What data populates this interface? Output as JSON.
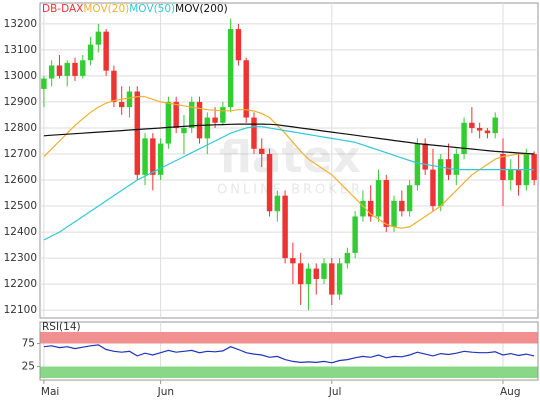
{
  "chart_data": {
    "type": "candlestick",
    "categories": [
      "Mai",
      null,
      null,
      null,
      null,
      null,
      null,
      null,
      null,
      null,
      null,
      null,
      null,
      null,
      null,
      "Jun",
      null,
      null,
      null,
      null,
      null,
      null,
      null,
      null,
      null,
      null,
      null,
      null,
      null,
      null,
      null,
      null,
      null,
      null,
      null,
      null,
      null,
      "Jul",
      null,
      null,
      null,
      null,
      null,
      null,
      null,
      null,
      null,
      null,
      null,
      null,
      null,
      null,
      null,
      null,
      null,
      null,
      null,
      null,
      null,
      "Aug",
      null,
      null,
      null,
      null
    ],
    "ohlc": {
      "name": "DB-DAX",
      "up_color": "#33cc33",
      "down_color": "#ee3333",
      "open": [
        12950,
        12990,
        13040,
        13000,
        13050,
        13000,
        13060,
        13120,
        13170,
        13020,
        12900,
        12880,
        12940,
        12620,
        12760,
        12620,
        12740,
        12900,
        12780,
        12800,
        12900,
        12760,
        12840,
        12820,
        12880,
        13180,
        13060,
        12840,
        12720,
        12700,
        12480,
        12540,
        12300,
        12280,
        12200,
        12260,
        12220,
        12280,
        12160,
        12280,
        12320,
        12460,
        12520,
        12460,
        12600,
        12420,
        12520,
        12480,
        12580,
        12740,
        12640,
        12500,
        12680,
        12620,
        12700,
        12820,
        12800,
        12790,
        12780,
        12700,
        12600,
        12640,
        12580,
        12700
      ],
      "high": [
        13000,
        13060,
        13080,
        13060,
        13070,
        13080,
        13150,
        13200,
        13180,
        13040,
        12960,
        12960,
        12960,
        12780,
        12780,
        12760,
        12920,
        12920,
        12850,
        12920,
        12920,
        12860,
        12880,
        12900,
        13220,
        13200,
        13070,
        12860,
        12760,
        12720,
        12560,
        12560,
        12360,
        12320,
        12280,
        12280,
        12300,
        12300,
        12300,
        12340,
        12480,
        12560,
        12580,
        12640,
        12620,
        12540,
        12560,
        12600,
        12760,
        12760,
        12720,
        12700,
        12740,
        12720,
        12840,
        12880,
        12820,
        12800,
        12860,
        12760,
        12680,
        12700,
        12720,
        12710
      ],
      "low": [
        12880,
        12960,
        12990,
        12960,
        12980,
        12990,
        13040,
        13090,
        13000,
        12880,
        12850,
        12840,
        12600,
        12580,
        12560,
        12600,
        12720,
        12780,
        12700,
        12780,
        12740,
        12700,
        12800,
        12810,
        12860,
        13040,
        12820,
        12700,
        12650,
        12460,
        12440,
        12280,
        12200,
        12120,
        12100,
        12160,
        12200,
        12120,
        12140,
        12260,
        12300,
        12440,
        12440,
        12440,
        12400,
        12400,
        12460,
        12460,
        12560,
        12620,
        12480,
        12480,
        12600,
        12580,
        12680,
        12780,
        12760,
        12760,
        12760,
        12500,
        12560,
        12540,
        12560,
        12580
      ],
      "close": [
        12990,
        13040,
        13000,
        13050,
        13000,
        13060,
        13120,
        13170,
        13020,
        12900,
        12880,
        12940,
        12620,
        12760,
        12620,
        12740,
        12900,
        12800,
        12800,
        12900,
        12760,
        12840,
        12820,
        12880,
        13180,
        13060,
        12840,
        12720,
        12700,
        12480,
        12540,
        12300,
        12280,
        12200,
        12260,
        12220,
        12280,
        12160,
        12280,
        12320,
        12460,
        12520,
        12460,
        12600,
        12420,
        12520,
        12480,
        12580,
        12740,
        12640,
        12500,
        12680,
        12620,
        12700,
        12820,
        12800,
        12790,
        12780,
        12840,
        12600,
        12640,
        12580,
        12700,
        12600
      ]
    },
    "series": [
      {
        "name": "MOV(20)",
        "color": "#f0b030",
        "values": [
          12690,
          12720,
          12750,
          12780,
          12810,
          12835,
          12860,
          12880,
          12895,
          12905,
          12910,
          12915,
          12920,
          12920,
          12910,
          12900,
          12895,
          12890,
          12885,
          12880,
          12875,
          12870,
          12868,
          12866,
          12866,
          12870,
          12870,
          12865,
          12855,
          12840,
          12810,
          12780,
          12745,
          12710,
          12680,
          12660,
          12640,
          12620,
          12590,
          12560,
          12530,
          12500,
          12470,
          12450,
          12430,
          12420,
          12415,
          12420,
          12440,
          12460,
          12480,
          12500,
          12530,
          12560,
          12590,
          12620,
          12640,
          12660,
          12680,
          12690,
          12695,
          12700,
          12700,
          12700
        ]
      },
      {
        "name": "MOV(50)",
        "color": "#30c8d8",
        "values": [
          12370,
          12385,
          12400,
          12420,
          12440,
          12460,
          12480,
          12500,
          12520,
          12540,
          12560,
          12580,
          12600,
          12615,
          12630,
          12645,
          12660,
          12675,
          12690,
          12705,
          12720,
          12735,
          12750,
          12765,
          12780,
          12790,
          12800,
          12805,
          12805,
          12800,
          12795,
          12790,
          12785,
          12780,
          12775,
          12770,
          12765,
          12760,
          12755,
          12750,
          12745,
          12735,
          12725,
          12715,
          12705,
          12695,
          12685,
          12675,
          12665,
          12660,
          12655,
          12650,
          12645,
          12640,
          12640,
          12640,
          12640,
          12640,
          12640,
          12640,
          12640,
          12640,
          12640,
          12640
        ]
      },
      {
        "name": "MOV(200)",
        "color": "#111111",
        "values": [
          12770,
          12772,
          12774,
          12776,
          12778,
          12780,
          12782,
          12784,
          12786,
          12788,
          12790,
          12792,
          12794,
          12796,
          12798,
          12800,
          12802,
          12804,
          12806,
          12808,
          12810,
          12811,
          12812,
          12813,
          12814,
          12815,
          12815,
          12815,
          12815,
          12814,
          12812,
          12808,
          12804,
          12800,
          12796,
          12792,
          12788,
          12784,
          12780,
          12776,
          12772,
          12768,
          12764,
          12760,
          12756,
          12752,
          12748,
          12744,
          12740,
          12737,
          12734,
          12731,
          12728,
          12725,
          12722,
          12719,
          12716,
          12713,
          12710,
          12708,
          12706,
          12704,
          12702,
          12700
        ]
      }
    ],
    "ylim": [
      12070,
      13280
    ],
    "yticks": [
      12100,
      12200,
      12300,
      12400,
      12500,
      12600,
      12700,
      12800,
      12900,
      13000,
      13100,
      13200
    ],
    "grid": true,
    "watermark": "flatex",
    "watermark_sub": "ONLINE BROKER",
    "rsi": {
      "type": "line",
      "name": "RSI(14)",
      "color": "#2233bb",
      "values": [
        68,
        70,
        66,
        68,
        64,
        67,
        70,
        72,
        62,
        58,
        56,
        58,
        48,
        54,
        50,
        55,
        60,
        56,
        58,
        60,
        55,
        58,
        57,
        59,
        68,
        62,
        55,
        52,
        50,
        45,
        47,
        40,
        36,
        34,
        35,
        34,
        36,
        33,
        38,
        40,
        44,
        47,
        45,
        50,
        44,
        47,
        46,
        50,
        56,
        52,
        48,
        53,
        51,
        54,
        58,
        56,
        55,
        55,
        57,
        50,
        53,
        49,
        52,
        48
      ],
      "ylim": [
        0,
        100
      ],
      "yticks": [
        25,
        75
      ],
      "upper_color": "#f29090",
      "lower_color": "#88d888"
    }
  }
}
